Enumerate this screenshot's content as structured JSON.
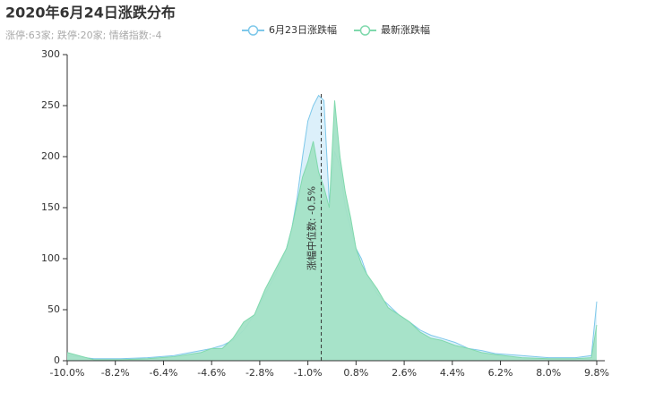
{
  "chart_data": {
    "type": "area",
    "title": "2020年6月24日涨跌分布",
    "subtitle": "涨停:63家; 跌停:20家; 情绪指数:-4",
    "x": [
      -10.0,
      -9.0,
      -8.0,
      -7.0,
      -6.0,
      -5.0,
      -4.6,
      -4.2,
      -3.8,
      -3.4,
      -3.0,
      -2.6,
      -2.2,
      -1.8,
      -1.6,
      -1.4,
      -1.2,
      -1.0,
      -0.8,
      -0.6,
      -0.4,
      -0.2,
      0.0,
      0.2,
      0.4,
      0.6,
      0.8,
      1.0,
      1.2,
      1.6,
      2.0,
      2.4,
      2.8,
      3.2,
      3.6,
      4.0,
      4.5,
      5.0,
      5.5,
      6.0,
      7.0,
      8.0,
      9.0,
      9.6,
      9.8
    ],
    "series": [
      {
        "name": "6月23日涨跌幅",
        "color": "#7ec8ea",
        "fill": "#dcf0fa",
        "values": [
          5,
          2,
          2,
          3,
          5,
          10,
          12,
          15,
          20,
          30,
          45,
          65,
          85,
          110,
          130,
          160,
          200,
          235,
          250,
          260,
          255,
          155,
          205,
          190,
          150,
          130,
          110,
          100,
          85,
          65,
          55,
          45,
          38,
          30,
          25,
          22,
          18,
          12,
          10,
          7,
          5,
          3,
          3,
          5,
          58
        ]
      },
      {
        "name": "最新涨跌幅",
        "color": "#80d9ad",
        "fill": "#a3e2c6",
        "values": [
          8,
          1,
          1,
          2,
          4,
          8,
          12,
          12,
          22,
          38,
          45,
          70,
          90,
          110,
          130,
          155,
          180,
          195,
          215,
          185,
          170,
          150,
          255,
          200,
          165,
          140,
          110,
          95,
          85,
          70,
          52,
          45,
          38,
          28,
          22,
          20,
          15,
          12,
          8,
          6,
          3,
          2,
          2,
          3,
          35
        ]
      }
    ],
    "median": {
      "value": -0.5,
      "label": "涨幅中位数: -0.5%"
    },
    "xlim": [
      -10.0,
      9.8
    ],
    "xticks": [
      {
        "value": -10.0,
        "label": "-10.0%"
      },
      {
        "value": -8.2,
        "label": "-8.2%"
      },
      {
        "value": -6.4,
        "label": "-6.4%"
      },
      {
        "value": -4.6,
        "label": "-4.6%"
      },
      {
        "value": -2.8,
        "label": "-2.8%"
      },
      {
        "value": -1.0,
        "label": "-1.0%"
      },
      {
        "value": 0.8,
        "label": "0.8%"
      },
      {
        "value": 2.6,
        "label": "2.6%"
      },
      {
        "value": 4.4,
        "label": "4.4%"
      },
      {
        "value": 6.2,
        "label": "6.2%"
      },
      {
        "value": 8.0,
        "label": "8.0%"
      },
      {
        "value": 9.8,
        "label": "9.8%"
      }
    ],
    "ylim": [
      0,
      300
    ],
    "yticks": [
      0,
      50,
      100,
      150,
      200,
      250,
      300
    ]
  }
}
